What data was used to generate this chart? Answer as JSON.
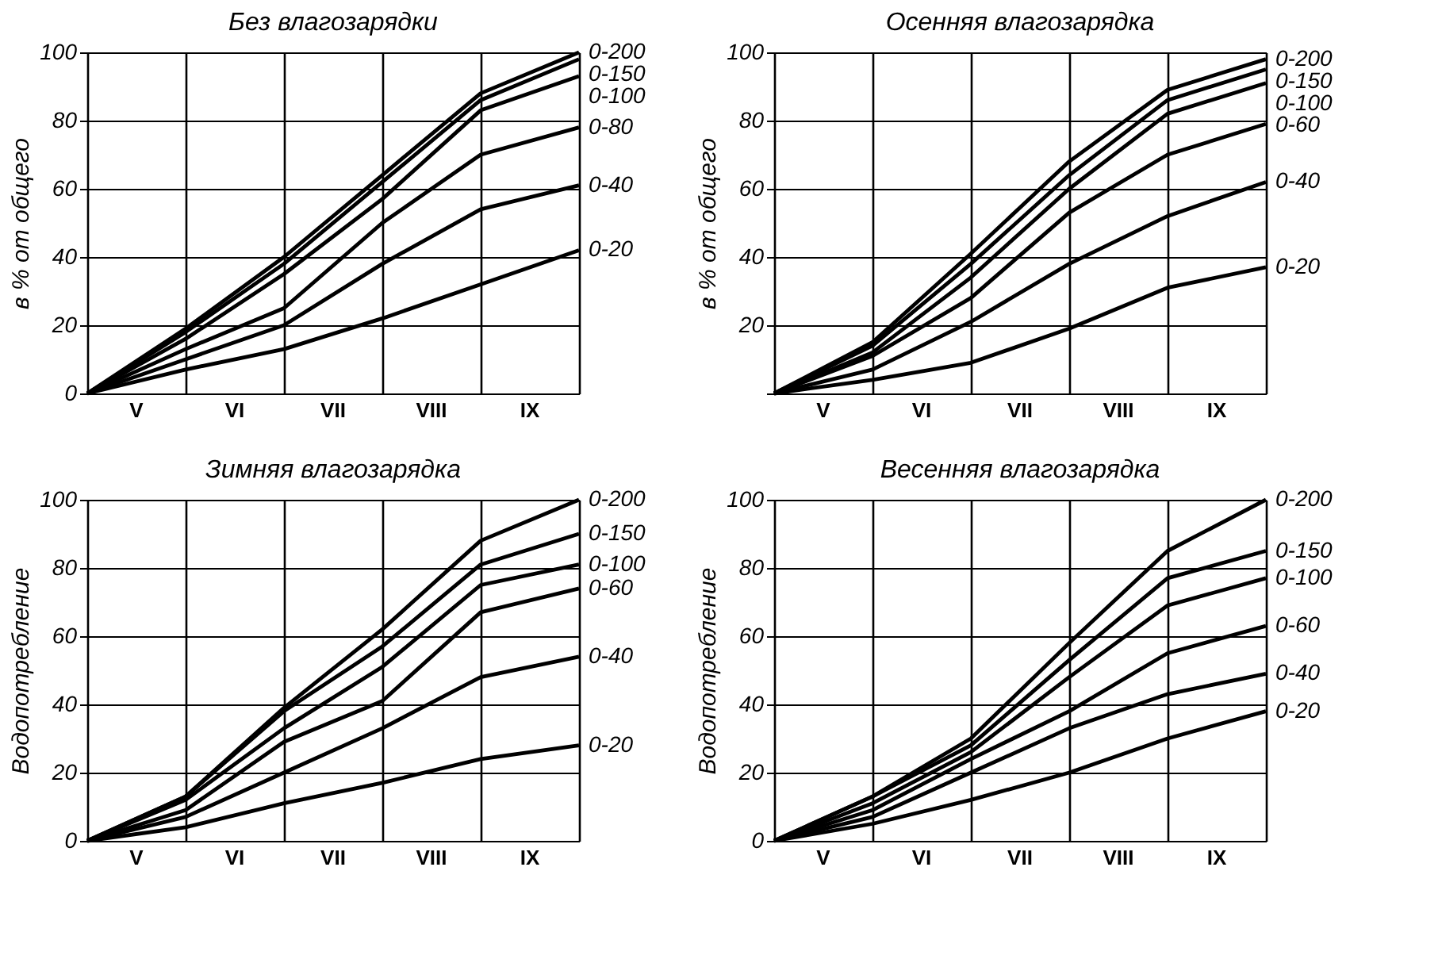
{
  "chart_data": [
    {
      "type": "line",
      "title": "Без влагозарядки",
      "ylabel": "в % от общего",
      "ylim": [
        0,
        100
      ],
      "categories": [
        null,
        null,
        null,
        null,
        null,
        null
      ],
      "annotations": [
        "V",
        "VI",
        "VII",
        "VIII",
        "IX"
      ],
      "yticks": [
        0,
        20,
        40,
        60,
        80,
        100
      ],
      "grid": true,
      "legend": false,
      "marker": "none",
      "line_style": "solid",
      "series": [
        {
          "name": "0-200",
          "color": "#000000",
          "values": [
            0,
            19,
            40,
            64,
            88,
            100
          ]
        },
        {
          "name": "0-150",
          "color": "#000000",
          "values": [
            0,
            18,
            38,
            62,
            86,
            98
          ]
        },
        {
          "name": "0-100",
          "color": "#000000",
          "values": [
            0,
            16,
            35,
            57,
            83,
            93
          ]
        },
        {
          "name": "0-80",
          "color": "#000000",
          "values": [
            0,
            13,
            25,
            50,
            70,
            78
          ]
        },
        {
          "name": "0-40",
          "color": "#000000",
          "values": [
            0,
            10,
            20,
            38,
            54,
            61
          ]
        },
        {
          "name": "0-20",
          "color": "#000000",
          "values": [
            0,
            7,
            13,
            22,
            32,
            42
          ]
        }
      ]
    },
    {
      "type": "line",
      "title": "Осенняя влагозарядка",
      "ylabel": "в % от общего",
      "ylim": [
        0,
        100
      ],
      "categories": [
        null,
        null,
        null,
        null,
        null,
        null
      ],
      "annotations": [
        "V",
        "VI",
        "VII",
        "VIII",
        "IX"
      ],
      "yticks": [
        {
          "value": 0,
          "label": null
        },
        20,
        40,
        60,
        80,
        100
      ],
      "grid": true,
      "legend": false,
      "marker": "none",
      "line_style": "solid",
      "series": [
        {
          "name": "0-200",
          "color": "#000000",
          "values": [
            0,
            15,
            41,
            68,
            89,
            98
          ]
        },
        {
          "name": "0-150",
          "color": "#000000",
          "values": [
            0,
            14,
            38,
            64,
            86,
            95
          ]
        },
        {
          "name": "0-100",
          "color": "#000000",
          "values": [
            0,
            12,
            34,
            60,
            82,
            91
          ]
        },
        {
          "name": "0-60",
          "color": "#000000",
          "values": [
            0,
            11,
            28,
            53,
            70,
            79
          ]
        },
        {
          "name": "0-40",
          "color": "#000000",
          "values": [
            0,
            7,
            21,
            38,
            52,
            62
          ]
        },
        {
          "name": "0-20",
          "color": "#000000",
          "values": [
            0,
            4,
            9,
            19,
            31,
            37
          ]
        }
      ]
    },
    {
      "type": "line",
      "title": "Зимняя влагозарядка",
      "ylabel": "Водопотребление",
      "ylim": [
        0,
        100
      ],
      "categories": [
        null,
        null,
        null,
        null,
        null,
        null
      ],
      "annotations": [
        "V",
        "VI",
        "VII",
        "VIII",
        "IX"
      ],
      "yticks": [
        0,
        20,
        40,
        60,
        80,
        100
      ],
      "grid": true,
      "legend": false,
      "marker": "none",
      "line_style": "solid",
      "series": [
        {
          "name": "0-200",
          "color": "#000000",
          "values": [
            0,
            13,
            39,
            62,
            88,
            100
          ]
        },
        {
          "name": "0-150",
          "color": "#000000",
          "values": [
            0,
            13,
            38,
            57,
            81,
            90
          ]
        },
        {
          "name": "0-100",
          "color": "#000000",
          "values": [
            0,
            12,
            33,
            51,
            75,
            81
          ]
        },
        {
          "name": "0-60",
          "color": "#000000",
          "values": [
            0,
            9,
            29,
            41,
            67,
            74
          ]
        },
        {
          "name": "0-40",
          "color": "#000000",
          "values": [
            0,
            7,
            20,
            33,
            48,
            54
          ]
        },
        {
          "name": "0-20",
          "color": "#000000",
          "values": [
            0,
            4,
            11,
            17,
            24,
            28
          ]
        }
      ]
    },
    {
      "type": "line",
      "title": "Весенняя влагозарядка",
      "ylabel": "Водопотребление",
      "ylim": [
        0,
        100
      ],
      "categories": [
        null,
        null,
        null,
        null,
        null,
        null
      ],
      "annotations": [
        "V",
        "VI",
        "VII",
        "VIII",
        "IX"
      ],
      "yticks": [
        0,
        20,
        40,
        60,
        80,
        100
      ],
      "grid": true,
      "legend": false,
      "marker": "none",
      "line_style": "solid",
      "series": [
        {
          "name": "0-200",
          "color": "#000000",
          "values": [
            0,
            13,
            30,
            58,
            85,
            100
          ]
        },
        {
          "name": "0-150",
          "color": "#000000",
          "values": [
            0,
            13,
            28,
            53,
            77,
            85
          ]
        },
        {
          "name": "0-100",
          "color": "#000000",
          "values": [
            0,
            11,
            26,
            48,
            69,
            77
          ]
        },
        {
          "name": "0-60",
          "color": "#000000",
          "values": [
            0,
            9,
            24,
            38,
            55,
            63
          ]
        },
        {
          "name": "0-40",
          "color": "#000000",
          "values": [
            0,
            7,
            20,
            33,
            43,
            49
          ]
        },
        {
          "name": "0-20",
          "color": "#000000",
          "values": [
            0,
            5,
            12,
            20,
            30,
            38
          ]
        }
      ]
    }
  ]
}
